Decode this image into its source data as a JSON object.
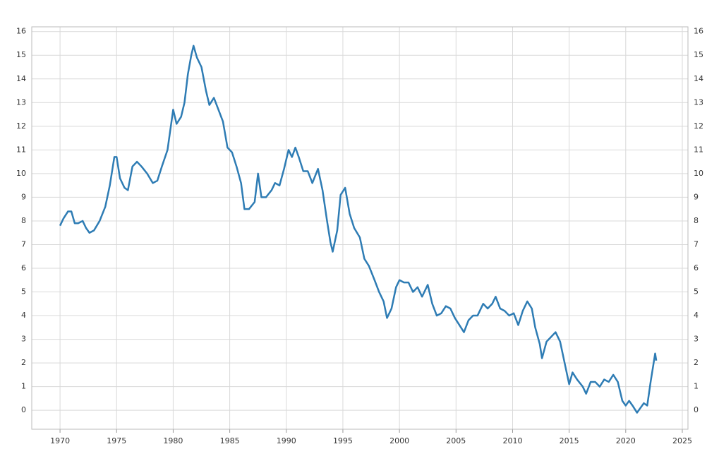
{
  "chart_data": {
    "type": "line",
    "x": [
      1970.0,
      1970.3,
      1970.7,
      1971.0,
      1971.3,
      1971.6,
      1972.0,
      1972.3,
      1972.6,
      1973.0,
      1973.5,
      1974.0,
      1974.4,
      1974.8,
      1975.0,
      1975.3,
      1975.7,
      1976.0,
      1976.4,
      1976.8,
      1977.2,
      1977.7,
      1978.2,
      1978.6,
      1979.0,
      1979.5,
      1980.0,
      1980.3,
      1980.7,
      1981.0,
      1981.3,
      1981.6,
      1981.8,
      1982.1,
      1982.5,
      1982.9,
      1983.2,
      1983.6,
      1984.0,
      1984.4,
      1984.8,
      1985.2,
      1985.6,
      1986.0,
      1986.3,
      1986.7,
      1987.2,
      1987.5,
      1987.8,
      1988.2,
      1988.7,
      1989.0,
      1989.4,
      1989.8,
      1990.2,
      1990.5,
      1990.8,
      1991.1,
      1991.5,
      1991.9,
      1992.3,
      1992.8,
      1993.2,
      1993.6,
      1993.9,
      1994.1,
      1994.5,
      1994.8,
      1995.2,
      1995.6,
      1996.0,
      1996.5,
      1996.9,
      1997.3,
      1997.8,
      1998.2,
      1998.6,
      1998.9,
      1999.3,
      1999.7,
      2000.0,
      2000.4,
      2000.8,
      2001.2,
      2001.6,
      2002.0,
      2002.5,
      2002.9,
      2003.3,
      2003.7,
      2004.1,
      2004.5,
      2004.9,
      2005.3,
      2005.7,
      2006.1,
      2006.5,
      2006.9,
      2007.4,
      2007.8,
      2008.2,
      2008.5,
      2008.9,
      2009.3,
      2009.7,
      2010.1,
      2010.5,
      2010.9,
      2011.3,
      2011.7,
      2012.0,
      2012.4,
      2012.6,
      2013.0,
      2013.4,
      2013.8,
      2014.2,
      2014.6,
      2015.0,
      2015.3,
      2015.7,
      2016.2,
      2016.5,
      2016.9,
      2017.3,
      2017.7,
      2018.1,
      2018.5,
      2018.9,
      2019.3,
      2019.7,
      2020.0,
      2020.3,
      2020.6,
      2021.0,
      2021.3,
      2021.6,
      2021.9,
      2022.2,
      2022.5,
      2022.6,
      2022.7
    ],
    "values": [
      7.8,
      8.1,
      8.4,
      8.4,
      7.9,
      7.9,
      8.0,
      7.7,
      7.5,
      7.6,
      8.0,
      8.6,
      9.5,
      10.7,
      10.7,
      9.8,
      9.4,
      9.3,
      10.3,
      10.5,
      10.3,
      10.0,
      9.6,
      9.7,
      10.3,
      11.0,
      12.7,
      12.1,
      12.4,
      13.0,
      14.2,
      15.0,
      15.4,
      14.9,
      14.5,
      13.5,
      12.9,
      13.2,
      12.7,
      12.2,
      11.1,
      10.9,
      10.3,
      9.6,
      8.5,
      8.5,
      8.8,
      10.0,
      9.0,
      9.0,
      9.3,
      9.6,
      9.5,
      10.2,
      11.0,
      10.7,
      11.1,
      10.7,
      10.1,
      10.1,
      9.6,
      10.2,
      9.3,
      8.0,
      7.1,
      6.7,
      7.6,
      9.1,
      9.4,
      8.3,
      7.7,
      7.3,
      6.4,
      6.1,
      5.5,
      5.0,
      4.6,
      3.9,
      4.3,
      5.2,
      5.5,
      5.4,
      5.4,
      5.0,
      5.2,
      4.8,
      5.3,
      4.5,
      4.0,
      4.1,
      4.4,
      4.3,
      3.9,
      3.6,
      3.3,
      3.8,
      4.0,
      4.0,
      4.5,
      4.3,
      4.5,
      4.8,
      4.3,
      4.2,
      4.0,
      4.1,
      3.6,
      4.2,
      4.6,
      4.3,
      3.5,
      2.8,
      2.2,
      2.9,
      3.1,
      3.3,
      2.9,
      2.0,
      1.1,
      1.6,
      1.3,
      1.0,
      0.7,
      1.2,
      1.2,
      1.0,
      1.3,
      1.2,
      1.5,
      1.2,
      0.4,
      0.2,
      0.4,
      0.2,
      -0.1,
      0.1,
      0.3,
      0.2,
      1.2,
      2.1,
      2.4,
      2.1
    ],
    "color": "#2e7cb4",
    "xlim": [
      1967.5,
      2025.5
    ],
    "xticks": [
      1970,
      1975,
      1980,
      1985,
      1990,
      1995,
      2000,
      2005,
      2010,
      2015,
      2020,
      2025
    ],
    "ylim": [
      -0.8,
      16.2
    ],
    "yticks": [
      0,
      1,
      2,
      3,
      4,
      5,
      6,
      7,
      8,
      9,
      10,
      11,
      12,
      13,
      14,
      15,
      16
    ],
    "grid": true
  }
}
